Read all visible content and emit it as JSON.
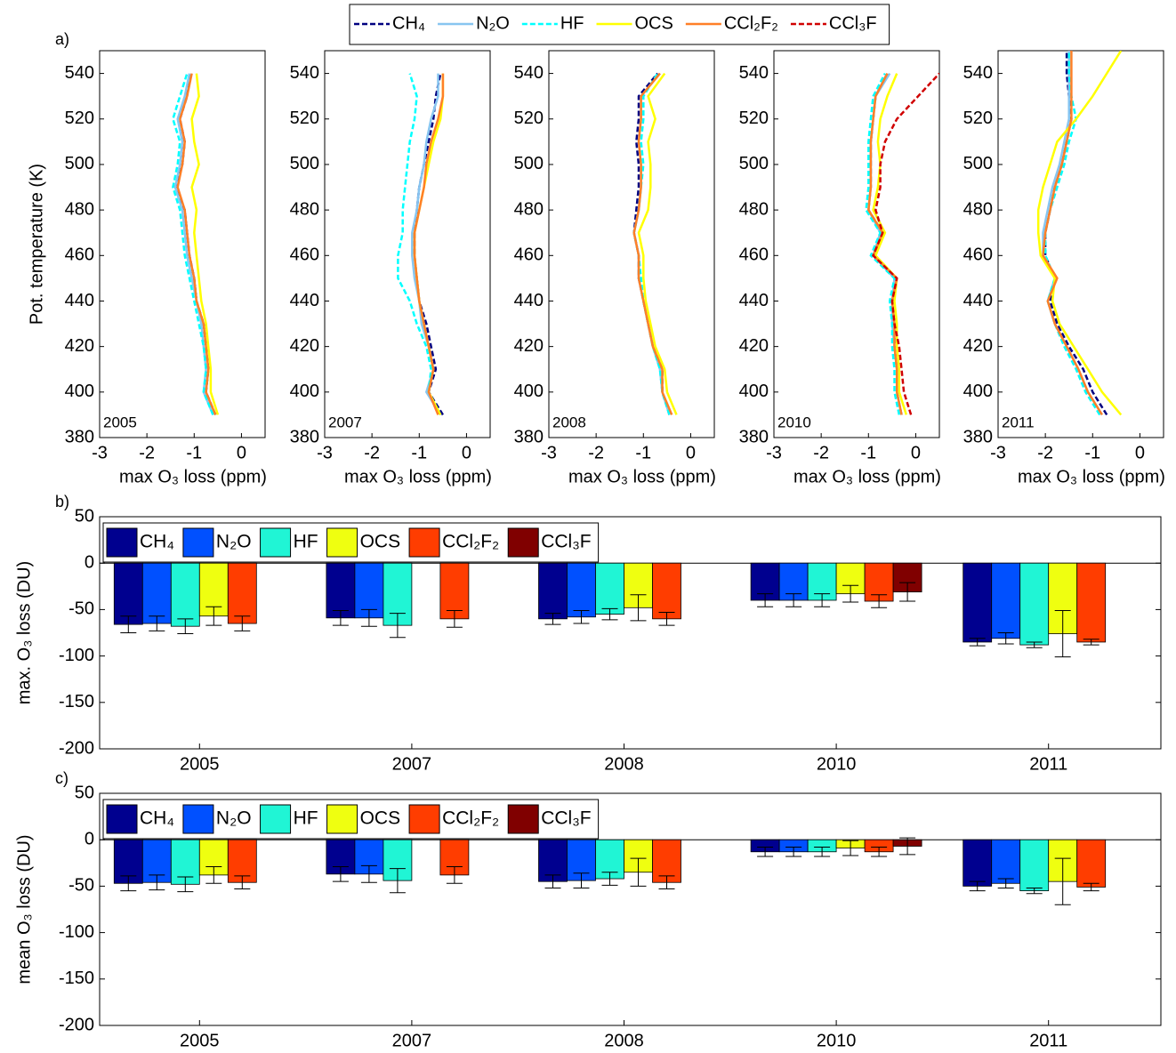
{
  "chart_data": [
    {
      "type": "line",
      "panel_label": "a)",
      "annotation": "2005",
      "ylabel": "Pot. temperature (K)",
      "xlabel": "max O₃ loss (ppm)",
      "y": [
        390,
        400,
        410,
        420,
        430,
        440,
        450,
        460,
        470,
        480,
        490,
        500,
        510,
        520,
        530,
        540,
        550
      ],
      "xlim": [
        -3,
        0.5
      ],
      "xticks": [
        -3,
        -2,
        -1,
        0
      ],
      "ylim": [
        380,
        550
      ],
      "yticks": [
        380,
        400,
        420,
        440,
        460,
        480,
        500,
        520,
        540
      ],
      "series": [
        {
          "name": "CH₄",
          "color": "#000080",
          "style": "dashed",
          "values": [
            -0.55,
            -0.75,
            -0.7,
            -0.75,
            -0.8,
            -0.95,
            -1.0,
            -1.1,
            -1.15,
            -1.2,
            -1.4,
            -1.25,
            -1.2,
            -1.3,
            -1.15,
            -1.1,
            null
          ]
        },
        {
          "name": "N₂O",
          "color": "#87c5f0",
          "style": "solid",
          "values": [
            -0.6,
            -0.8,
            -0.75,
            -0.8,
            -0.85,
            -0.95,
            -1.05,
            -1.15,
            -1.2,
            -1.25,
            -1.4,
            -1.3,
            -1.25,
            -1.35,
            -1.2,
            -1.1,
            null
          ]
        },
        {
          "name": "HF",
          "color": "#00ffff",
          "style": "dashed",
          "values": [
            -0.6,
            -0.8,
            -0.75,
            -0.8,
            -0.9,
            -1.0,
            -1.1,
            -1.2,
            -1.25,
            -1.3,
            -1.45,
            -1.35,
            -1.3,
            -1.45,
            -1.3,
            -1.15,
            null
          ]
        },
        {
          "name": "OCS",
          "color": "#ffff00",
          "style": "solid",
          "values": [
            -0.5,
            -0.65,
            -0.65,
            -0.7,
            -0.75,
            -0.85,
            -0.9,
            -0.95,
            -1.0,
            -0.95,
            -1.05,
            -0.9,
            -1.0,
            -1.05,
            -0.9,
            -0.95,
            null
          ]
        },
        {
          "name": "CCl₂F₂",
          "color": "#ff7f27",
          "style": "solid",
          "values": [
            -0.55,
            -0.75,
            -0.7,
            -0.75,
            -0.8,
            -0.95,
            -1.0,
            -1.1,
            -1.15,
            -1.2,
            -1.35,
            -1.25,
            -1.2,
            -1.3,
            -1.15,
            -1.05,
            null
          ]
        }
      ]
    },
    {
      "type": "line",
      "annotation": "2007",
      "xlabel": "max O₃ loss (ppm)",
      "y": [
        390,
        400,
        410,
        420,
        430,
        440,
        450,
        460,
        470,
        480,
        490,
        500,
        510,
        520,
        530,
        540,
        550
      ],
      "xlim": [
        -3,
        0.5
      ],
      "xticks": [
        -3,
        -2,
        -1,
        0
      ],
      "ylim": [
        380,
        550
      ],
      "yticks": [
        380,
        400,
        420,
        440,
        460,
        480,
        500,
        520,
        540
      ],
      "series": [
        {
          "name": "CH₄",
          "color": "#000080",
          "style": "dashed",
          "values": [
            -0.5,
            -0.8,
            -0.65,
            -0.75,
            -0.85,
            -1.0,
            -1.05,
            -1.1,
            -1.1,
            -1.05,
            -1.0,
            -0.9,
            -0.8,
            -0.7,
            -0.65,
            -0.55,
            null
          ]
        },
        {
          "name": "N₂O",
          "color": "#87c5f0",
          "style": "solid",
          "values": [
            -0.55,
            -0.85,
            -0.7,
            -0.8,
            -0.95,
            -1.0,
            -1.1,
            -1.15,
            -1.15,
            -1.05,
            -1.0,
            -0.9,
            -0.85,
            -0.75,
            -0.6,
            -0.6,
            null
          ]
        },
        {
          "name": "HF",
          "color": "#00ffff",
          "style": "dashed",
          "values": [
            -0.55,
            -0.8,
            -0.75,
            -0.85,
            -1.05,
            -1.2,
            -1.45,
            -1.45,
            -1.35,
            -1.35,
            -1.3,
            -1.25,
            -1.2,
            -1.1,
            -1.05,
            -1.2,
            null
          ]
        },
        {
          "name": "OCS",
          "color": "#ffff00",
          "style": "solid",
          "values": [
            -0.55,
            -0.8,
            -0.7,
            -0.8,
            -0.9,
            -1.0,
            -1.05,
            -1.1,
            -1.1,
            -1.0,
            -0.9,
            -0.8,
            -0.7,
            -0.55,
            -0.5,
            -0.5,
            null
          ]
        },
        {
          "name": "CCl₂F₂",
          "color": "#ff7f27",
          "style": "solid",
          "values": [
            -0.6,
            -0.8,
            -0.7,
            -0.8,
            -0.9,
            -1.0,
            -1.05,
            -1.1,
            -1.1,
            -1.0,
            -0.9,
            -0.85,
            -0.75,
            -0.6,
            -0.5,
            -0.5,
            null
          ]
        }
      ]
    },
    {
      "type": "line",
      "annotation": "2008",
      "xlabel": "max O₃ loss (ppm)",
      "y": [
        390,
        400,
        410,
        420,
        430,
        440,
        450,
        460,
        470,
        480,
        490,
        500,
        510,
        520,
        530,
        540,
        550
      ],
      "xlim": [
        -3,
        0.5
      ],
      "xticks": [
        -3,
        -2,
        -1,
        0
      ],
      "ylim": [
        380,
        550
      ],
      "yticks": [
        380,
        400,
        420,
        440,
        460,
        480,
        500,
        520,
        540
      ],
      "series": [
        {
          "name": "CH₄",
          "color": "#000080",
          "style": "dashed",
          "values": [
            -0.45,
            -0.6,
            -0.6,
            -0.8,
            -0.9,
            -1.0,
            -1.1,
            -1.1,
            -1.2,
            -1.15,
            -1.1,
            -1.1,
            -1.15,
            -1.1,
            -1.1,
            -0.7,
            null
          ]
        },
        {
          "name": "N₂O",
          "color": "#87c5f0",
          "style": "solid",
          "values": [
            -0.45,
            -0.6,
            -0.65,
            -0.8,
            -0.9,
            -1.0,
            -1.1,
            -1.1,
            -1.2,
            -1.1,
            -1.05,
            -1.05,
            -1.1,
            -1.05,
            -1.05,
            -0.65,
            null
          ]
        },
        {
          "name": "HF",
          "color": "#00ffff",
          "style": "dashed",
          "values": [
            -0.45,
            -0.6,
            -0.65,
            -0.8,
            -0.9,
            -1.0,
            -1.05,
            -1.1,
            -1.2,
            -1.1,
            -1.05,
            -1.0,
            -1.05,
            -1.0,
            -1.0,
            -0.7,
            null
          ]
        },
        {
          "name": "OCS",
          "color": "#ffff00",
          "style": "solid",
          "values": [
            -0.3,
            -0.5,
            -0.55,
            -0.75,
            -0.85,
            -0.95,
            -1.0,
            -1.0,
            -1.1,
            -0.9,
            -0.85,
            -0.85,
            -0.9,
            -0.75,
            -0.9,
            -0.55,
            null
          ]
        },
        {
          "name": "CCl₂F₂",
          "color": "#ff7f27",
          "style": "solid",
          "values": [
            -0.4,
            -0.6,
            -0.6,
            -0.8,
            -0.9,
            -1.0,
            -1.1,
            -1.1,
            -1.2,
            -1.1,
            -1.05,
            -1.05,
            -1.1,
            -1.05,
            -1.05,
            -0.65,
            null
          ]
        }
      ]
    },
    {
      "type": "line",
      "annotation": "2010",
      "xlabel": "max O₃ loss (ppm)",
      "legend": "top-outside",
      "y": [
        390,
        400,
        410,
        420,
        430,
        440,
        450,
        460,
        470,
        480,
        490,
        500,
        510,
        520,
        530,
        540,
        550
      ],
      "xlim": [
        -3,
        0.5
      ],
      "xticks": [
        -3,
        -2,
        -1,
        0
      ],
      "ylim": [
        380,
        550
      ],
      "yticks": [
        380,
        400,
        420,
        440,
        460,
        480,
        500,
        520,
        540
      ],
      "series": [
        {
          "name": "CH₄",
          "color": "#000080",
          "style": "dashed",
          "values": [
            -0.3,
            -0.4,
            -0.4,
            -0.45,
            -0.45,
            -0.5,
            -0.45,
            -0.9,
            -0.7,
            -1.0,
            -0.95,
            -0.95,
            -0.95,
            -0.9,
            -0.85,
            -0.6,
            null
          ]
        },
        {
          "name": "N₂O",
          "color": "#87c5f0",
          "style": "solid",
          "values": [
            -0.3,
            -0.4,
            -0.4,
            -0.45,
            -0.5,
            -0.5,
            -0.45,
            -0.9,
            -0.75,
            -1.0,
            -0.95,
            -0.95,
            -0.95,
            -0.9,
            -0.85,
            -0.55,
            null
          ]
        },
        {
          "name": "HF",
          "color": "#00ffff",
          "style": "dashed",
          "values": [
            -0.35,
            -0.45,
            -0.45,
            -0.5,
            -0.5,
            -0.55,
            -0.45,
            -0.95,
            -0.75,
            -1.05,
            -1.0,
            -1.0,
            -1.0,
            -0.95,
            -0.9,
            -0.65,
            null
          ]
        },
        {
          "name": "OCS",
          "color": "#ffff00",
          "style": "solid",
          "values": [
            -0.2,
            -0.35,
            -0.35,
            -0.4,
            -0.4,
            -0.45,
            -0.4,
            -0.85,
            -0.65,
            -0.9,
            -0.8,
            -0.75,
            -0.8,
            -0.75,
            -0.6,
            -0.4,
            null
          ]
        },
        {
          "name": "CCl₂F₂",
          "color": "#ff7f27",
          "style": "solid",
          "values": [
            -0.3,
            -0.4,
            -0.4,
            -0.45,
            -0.45,
            -0.5,
            -0.4,
            -0.9,
            -0.7,
            -1.0,
            -0.95,
            -0.95,
            -0.95,
            -0.9,
            -0.85,
            -0.6,
            null
          ]
        },
        {
          "name": "CCl₃F",
          "color": "#d00000",
          "style": "dashed",
          "values": [
            -0.1,
            -0.25,
            -0.3,
            -0.35,
            -0.45,
            -0.5,
            -0.4,
            -0.9,
            -0.7,
            -0.85,
            -0.75,
            -0.75,
            -0.65,
            -0.4,
            0.05,
            0.5,
            null
          ]
        }
      ]
    },
    {
      "type": "line",
      "annotation": "2011",
      "xlabel": "max O₃ loss (ppm)",
      "y": [
        390,
        400,
        410,
        420,
        430,
        440,
        450,
        460,
        470,
        480,
        490,
        500,
        510,
        520,
        530,
        540,
        550
      ],
      "xlim": [
        -3,
        0.5
      ],
      "xticks": [
        -3,
        -2,
        -1,
        0
      ],
      "ylim": [
        380,
        550
      ],
      "yticks": [
        380,
        400,
        420,
        440,
        460,
        480,
        500,
        520,
        540
      ],
      "series": [
        {
          "name": "CH₄",
          "color": "#000080",
          "style": "dashed",
          "values": [
            -0.7,
            -1.0,
            -1.2,
            -1.5,
            -1.75,
            -1.9,
            -1.8,
            -2.0,
            -2.0,
            -1.9,
            -1.8,
            -1.65,
            -1.55,
            -1.45,
            -1.5,
            -1.55,
            -1.55
          ]
        },
        {
          "name": "N₂O",
          "color": "#87c5f0",
          "style": "solid",
          "values": [
            -0.8,
            -1.1,
            -1.3,
            -1.55,
            -1.8,
            -1.95,
            -1.8,
            -2.05,
            -2.05,
            -1.95,
            -1.85,
            -1.7,
            -1.6,
            -1.5,
            -1.5,
            -1.5,
            -1.5
          ]
        },
        {
          "name": "HF",
          "color": "#00ffff",
          "style": "dashed",
          "values": [
            -0.85,
            -1.15,
            -1.35,
            -1.6,
            -1.8,
            -1.95,
            -1.8,
            -2.0,
            -2.0,
            -1.9,
            -1.75,
            -1.6,
            -1.5,
            -1.35,
            -1.45,
            -1.5,
            -1.5
          ]
        },
        {
          "name": "OCS",
          "color": "#ffff00",
          "style": "solid",
          "values": [
            -0.4,
            -0.8,
            -1.1,
            -1.4,
            -1.7,
            -1.85,
            -1.8,
            -2.1,
            -2.15,
            -2.15,
            -2.05,
            -1.9,
            -1.75,
            -1.35,
            -1.0,
            -0.7,
            -0.4
          ]
        },
        {
          "name": "CCl₂F₂",
          "color": "#ff7f27",
          "style": "solid",
          "values": [
            -0.8,
            -1.1,
            -1.3,
            -1.55,
            -1.8,
            -1.95,
            -1.75,
            -2.05,
            -2.0,
            -1.9,
            -1.8,
            -1.65,
            -1.55,
            -1.45,
            -1.45,
            -1.45,
            -1.45
          ]
        }
      ]
    },
    {
      "type": "bar",
      "panel_label": "b)",
      "ylabel": "max. O₃ loss (DU)",
      "legend": "top-left",
      "categories": [
        "2005",
        "2007",
        "2008",
        "2010",
        "2011"
      ],
      "ylim": [
        -200,
        50
      ],
      "yticks": [
        -200,
        -150,
        -100,
        -50,
        0,
        50
      ],
      "series": [
        {
          "name": "CH₄",
          "color": "#00008f",
          "values": [
            -66,
            -59,
            -60,
            -40,
            -85
          ],
          "errors": [
            9,
            8,
            6,
            7,
            4
          ]
        },
        {
          "name": "N₂O",
          "color": "#0050ff",
          "values": [
            -65,
            -59,
            -58,
            -40,
            -81
          ],
          "errors": [
            8,
            9,
            7,
            7,
            6
          ]
        },
        {
          "name": "HF",
          "color": "#20f5d5",
          "values": [
            -68,
            -67,
            -55,
            -40,
            -88
          ],
          "errors": [
            8,
            13,
            6,
            7,
            3
          ]
        },
        {
          "name": "OCS",
          "color": "#efff10",
          "values": [
            -57,
            null,
            -48,
            -33,
            -76
          ],
          "errors": [
            10,
            null,
            14,
            9,
            25
          ]
        },
        {
          "name": "CCl₂F₂",
          "color": "#ff3d00",
          "values": [
            -65,
            -60,
            -60,
            -41,
            -85
          ],
          "errors": [
            8,
            9,
            7,
            7,
            3
          ]
        },
        {
          "name": "CCl₃F",
          "color": "#800000",
          "values": [
            null,
            null,
            null,
            -31,
            null
          ],
          "errors": [
            null,
            null,
            null,
            10,
            null
          ]
        }
      ]
    },
    {
      "type": "bar",
      "panel_label": "c)",
      "ylabel": "mean O₃ loss (DU)",
      "legend": "top-left",
      "categories": [
        "2005",
        "2007",
        "2008",
        "2010",
        "2011"
      ],
      "ylim": [
        -200,
        50
      ],
      "yticks": [
        -200,
        -150,
        -100,
        -50,
        0,
        50
      ],
      "series": [
        {
          "name": "CH₄",
          "color": "#00008f",
          "values": [
            -47,
            -37,
            -45,
            -13,
            -50
          ],
          "errors": [
            8,
            8,
            7,
            5,
            5
          ]
        },
        {
          "name": "N₂O",
          "color": "#0050ff",
          "values": [
            -46,
            -37,
            -44,
            -13,
            -47
          ],
          "errors": [
            8,
            9,
            8,
            5,
            5
          ]
        },
        {
          "name": "HF",
          "color": "#20f5d5",
          "values": [
            -48,
            -44,
            -42,
            -13,
            -55
          ],
          "errors": [
            8,
            13,
            7,
            5,
            3
          ]
        },
        {
          "name": "OCS",
          "color": "#efff10",
          "values": [
            -38,
            null,
            -35,
            -9,
            -45
          ],
          "errors": [
            9,
            null,
            15,
            8,
            25
          ]
        },
        {
          "name": "CCl₂F₂",
          "color": "#ff3d00",
          "values": [
            -46,
            -38,
            -46,
            -13,
            -51
          ],
          "errors": [
            7,
            9,
            7,
            5,
            4
          ]
        },
        {
          "name": "CCl₃F",
          "color": "#800000",
          "values": [
            null,
            null,
            null,
            -7,
            null
          ],
          "errors": [
            null,
            null,
            null,
            9,
            null
          ]
        }
      ]
    }
  ]
}
